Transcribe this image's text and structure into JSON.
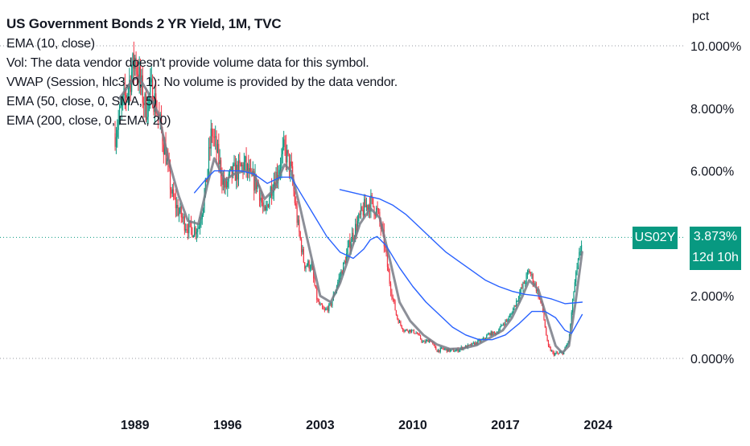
{
  "legend": {
    "title": "US Government Bonds 2 YR Yield, 1M, TVC",
    "lines": [
      "EMA (10, close)",
      "Vol: The data vendor doesn't provide volume data for this symbol.",
      "VWAP (Session, hlc3, 0, 1): No volume is provided by the data vendor.",
      "EMA (50, close, 0, SMA, 5)",
      "EMA (200, close, 0, EMA, 20)"
    ]
  },
  "badge": {
    "symbol": "US02Y",
    "price": "3.873%",
    "countdown": "12d 10h"
  },
  "colors": {
    "up": "#089981",
    "down": "#f23645",
    "ema10": "#787b86",
    "ema50": "#2962ff",
    "ema200": "#2962ff",
    "grid_dots": "#9598a1",
    "axis_text": "#131722"
  },
  "chart_data": {
    "type": "candlestick",
    "unit_label": "pct",
    "y_ticks": [
      "10.000%",
      "8.000%",
      "6.000%",
      "2.000%",
      "0.000%"
    ],
    "y_tick_values": [
      10,
      8,
      6,
      2,
      0
    ],
    "x_ticks": [
      "1989",
      "1996",
      "2003",
      "2010",
      "2017",
      "2024"
    ],
    "x_tick_values": [
      1989,
      1996,
      2003,
      2010,
      2017,
      2024
    ],
    "ylim": [
      -0.2,
      10.5
    ],
    "xlim": [
      1978.8,
      2030.5
    ],
    "last_price": 3.873,
    "series": [
      {
        "name": "price",
        "points": [
          [
            1987.5,
            7.2
          ],
          [
            1988.0,
            8.0
          ],
          [
            1988.5,
            8.7
          ],
          [
            1989.0,
            9.6
          ],
          [
            1989.3,
            9.0
          ],
          [
            1989.8,
            8.0
          ],
          [
            1990.3,
            8.6
          ],
          [
            1990.8,
            7.7
          ],
          [
            1991.3,
            6.6
          ],
          [
            1991.8,
            5.2
          ],
          [
            1992.3,
            4.7
          ],
          [
            1992.8,
            4.3
          ],
          [
            1993.3,
            4.1
          ],
          [
            1993.8,
            4.2
          ],
          [
            1994.3,
            5.3
          ],
          [
            1994.8,
            7.3
          ],
          [
            1995.3,
            6.4
          ],
          [
            1995.8,
            5.4
          ],
          [
            1996.3,
            5.9
          ],
          [
            1996.8,
            6.0
          ],
          [
            1997.3,
            6.2
          ],
          [
            1997.8,
            5.7
          ],
          [
            1998.3,
            5.6
          ],
          [
            1998.8,
            4.5
          ],
          [
            1999.3,
            5.5
          ],
          [
            1999.8,
            6.0
          ],
          [
            2000.3,
            6.7
          ],
          [
            2000.8,
            6.0
          ],
          [
            2001.3,
            4.3
          ],
          [
            2001.8,
            3.0
          ],
          [
            2002.3,
            3.0
          ],
          [
            2002.8,
            1.8
          ],
          [
            2003.3,
            1.5
          ],
          [
            2003.8,
            1.7
          ],
          [
            2004.3,
            2.4
          ],
          [
            2004.8,
            3.0
          ],
          [
            2005.3,
            3.8
          ],
          [
            2005.8,
            4.3
          ],
          [
            2006.3,
            4.8
          ],
          [
            2006.8,
            5.0
          ],
          [
            2007.3,
            4.7
          ],
          [
            2007.8,
            3.8
          ],
          [
            2008.3,
            2.3
          ],
          [
            2008.8,
            1.3
          ],
          [
            2009.3,
            0.9
          ],
          [
            2009.8,
            0.9
          ],
          [
            2010.3,
            0.8
          ],
          [
            2010.8,
            0.5
          ],
          [
            2011.3,
            0.6
          ],
          [
            2011.8,
            0.25
          ],
          [
            2012.3,
            0.3
          ],
          [
            2012.8,
            0.25
          ],
          [
            2013.3,
            0.25
          ],
          [
            2013.8,
            0.35
          ],
          [
            2014.3,
            0.4
          ],
          [
            2014.8,
            0.5
          ],
          [
            2015.3,
            0.6
          ],
          [
            2015.8,
            0.8
          ],
          [
            2016.3,
            0.8
          ],
          [
            2016.8,
            1.1
          ],
          [
            2017.3,
            1.3
          ],
          [
            2017.8,
            1.8
          ],
          [
            2018.3,
            2.3
          ],
          [
            2018.8,
            2.8
          ],
          [
            2019.3,
            2.3
          ],
          [
            2019.8,
            1.6
          ],
          [
            2020.2,
            0.4
          ],
          [
            2020.6,
            0.15
          ],
          [
            2021.0,
            0.15
          ],
          [
            2021.4,
            0.2
          ],
          [
            2021.8,
            0.6
          ],
          [
            2022.2,
            2.3
          ],
          [
            2022.6,
            3.3
          ],
          [
            2022.8,
            3.87
          ]
        ]
      },
      {
        "name": "EMA (10, close)",
        "points": [
          [
            1987.8,
            8.3
          ],
          [
            1988.8,
            8.9
          ],
          [
            1989.3,
            9.0
          ],
          [
            1990.0,
            8.5
          ],
          [
            1990.8,
            7.8
          ],
          [
            1991.5,
            6.4
          ],
          [
            1992.3,
            5.2
          ],
          [
            1993.0,
            4.4
          ],
          [
            1993.8,
            4.3
          ],
          [
            1994.5,
            5.6
          ],
          [
            1995.0,
            6.4
          ],
          [
            1995.8,
            5.7
          ],
          [
            1996.5,
            5.9
          ],
          [
            1997.3,
            6.0
          ],
          [
            1998.0,
            5.9
          ],
          [
            1998.8,
            5.1
          ],
          [
            1999.5,
            5.4
          ],
          [
            2000.3,
            6.2
          ],
          [
            2000.8,
            6.0
          ],
          [
            2001.5,
            4.8
          ],
          [
            2002.3,
            3.3
          ],
          [
            2003.0,
            2.0
          ],
          [
            2003.8,
            1.8
          ],
          [
            2004.5,
            2.4
          ],
          [
            2005.3,
            3.4
          ],
          [
            2006.0,
            4.3
          ],
          [
            2006.8,
            4.8
          ],
          [
            2007.5,
            4.5
          ],
          [
            2008.3,
            3.1
          ],
          [
            2009.0,
            1.8
          ],
          [
            2009.8,
            1.2
          ],
          [
            2010.8,
            0.75
          ],
          [
            2011.8,
            0.45
          ],
          [
            2012.8,
            0.3
          ],
          [
            2013.8,
            0.32
          ],
          [
            2014.8,
            0.42
          ],
          [
            2015.8,
            0.65
          ],
          [
            2016.8,
            0.9
          ],
          [
            2017.5,
            1.3
          ],
          [
            2018.3,
            2.0
          ],
          [
            2018.8,
            2.5
          ],
          [
            2019.5,
            2.2
          ],
          [
            2020.2,
            1.2
          ],
          [
            2020.8,
            0.4
          ],
          [
            2021.3,
            0.18
          ],
          [
            2021.8,
            0.4
          ],
          [
            2022.3,
            1.8
          ],
          [
            2022.8,
            3.4
          ]
        ]
      },
      {
        "name": "EMA (50, close, 0, SMA, 5)",
        "points": [
          [
            1993.5,
            5.3
          ],
          [
            1994.3,
            5.7
          ],
          [
            1995.0,
            6.0
          ],
          [
            1996.0,
            6.0
          ],
          [
            1997.0,
            6.0
          ],
          [
            1998.0,
            5.9
          ],
          [
            1999.0,
            5.6
          ],
          [
            2000.0,
            5.8
          ],
          [
            2000.8,
            5.8
          ],
          [
            2001.5,
            5.3
          ],
          [
            2002.5,
            4.6
          ],
          [
            2003.5,
            3.9
          ],
          [
            2004.5,
            3.4
          ],
          [
            2005.5,
            3.2
          ],
          [
            2006.3,
            3.5
          ],
          [
            2006.8,
            3.8
          ],
          [
            2007.3,
            3.9
          ],
          [
            2008.0,
            3.6
          ],
          [
            2009.0,
            2.9
          ],
          [
            2010.0,
            2.3
          ],
          [
            2011.0,
            1.8
          ],
          [
            2012.0,
            1.4
          ],
          [
            2013.0,
            1.0
          ],
          [
            2014.0,
            0.75
          ],
          [
            2015.0,
            0.6
          ],
          [
            2016.0,
            0.6
          ],
          [
            2017.0,
            0.75
          ],
          [
            2018.0,
            1.1
          ],
          [
            2019.0,
            1.5
          ],
          [
            2020.0,
            1.5
          ],
          [
            2020.8,
            1.3
          ],
          [
            2021.5,
            0.9
          ],
          [
            2022.0,
            0.8
          ],
          [
            2022.8,
            1.4
          ]
        ]
      },
      {
        "name": "EMA (200, close, 0, EMA, 20)",
        "points": [
          [
            2004.5,
            5.4
          ],
          [
            2005.5,
            5.3
          ],
          [
            2006.5,
            5.2
          ],
          [
            2007.5,
            5.1
          ],
          [
            2008.5,
            4.9
          ],
          [
            2009.5,
            4.6
          ],
          [
            2010.5,
            4.2
          ],
          [
            2011.5,
            3.8
          ],
          [
            2012.5,
            3.4
          ],
          [
            2013.5,
            3.1
          ],
          [
            2014.5,
            2.8
          ],
          [
            2015.5,
            2.5
          ],
          [
            2016.5,
            2.3
          ],
          [
            2017.5,
            2.15
          ],
          [
            2018.5,
            2.05
          ],
          [
            2019.5,
            2.0
          ],
          [
            2020.5,
            1.9
          ],
          [
            2021.5,
            1.75
          ],
          [
            2022.8,
            1.8
          ]
        ]
      }
    ]
  }
}
